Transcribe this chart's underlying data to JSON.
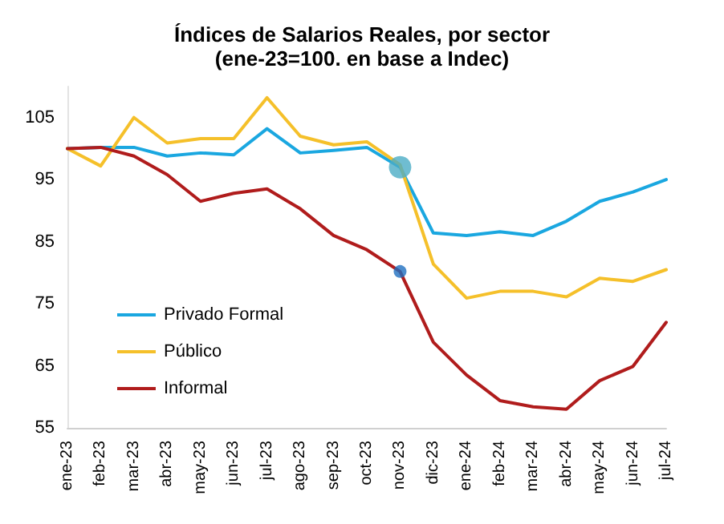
{
  "chart_data": {
    "type": "line",
    "title": "Índices de Salarios Reales, por sector",
    "subtitle": "(ene-23=100. en base a Indec)",
    "categories": [
      "ene-23",
      "feb-23",
      "mar-23",
      "abr-23",
      "may-23",
      "jun-23",
      "jul-23",
      "ago-23",
      "sep-23",
      "oct-23",
      "nov-23",
      "dic-23",
      "ene-24",
      "feb-24",
      "mar-24",
      "abr-24",
      "may-24",
      "jun-24",
      "jul-24"
    ],
    "series": [
      {
        "name": "Privado Formal",
        "color": "#1aa7e0",
        "values": [
          100,
          100.2,
          100.2,
          98.8,
          99.3,
          99,
          103.2,
          99.3,
          99.7,
          100.2,
          97,
          86.4,
          86,
          86.6,
          86,
          88.3,
          91.5,
          93,
          95
        ]
      },
      {
        "name": "Público",
        "color": "#f5c02a",
        "values": [
          100,
          97.2,
          105,
          100.9,
          101.6,
          101.6,
          108.2,
          102,
          100.6,
          101.1,
          97.4,
          81.4,
          75.9,
          77,
          77,
          76.1,
          79.1,
          78.6,
          80.5
        ]
      },
      {
        "name": "Informal",
        "color": "#b01c1c",
        "values": [
          100,
          100.2,
          98.8,
          95.8,
          91.5,
          92.8,
          93.5,
          90.3,
          86,
          83.7,
          80.2,
          68.8,
          63.5,
          59.4,
          58.4,
          58,
          62.6,
          64.9,
          72
        ]
      },
      {
        "type": "scatter",
        "color": "#4bacc6",
        "x": [
          "nov-23"
        ],
        "values": [
          97
        ],
        "marker": "circle"
      },
      {
        "type": "scatter",
        "color": "#1f6fc0",
        "x": [
          "nov-23"
        ],
        "values": [
          80.2
        ],
        "marker": "circle"
      }
    ],
    "ylim": [
      55,
      110
    ],
    "yticks": [
      55,
      65,
      75,
      85,
      95,
      105
    ],
    "grid": false,
    "legend": "left",
    "marker": "none",
    "line_style": "solid"
  }
}
